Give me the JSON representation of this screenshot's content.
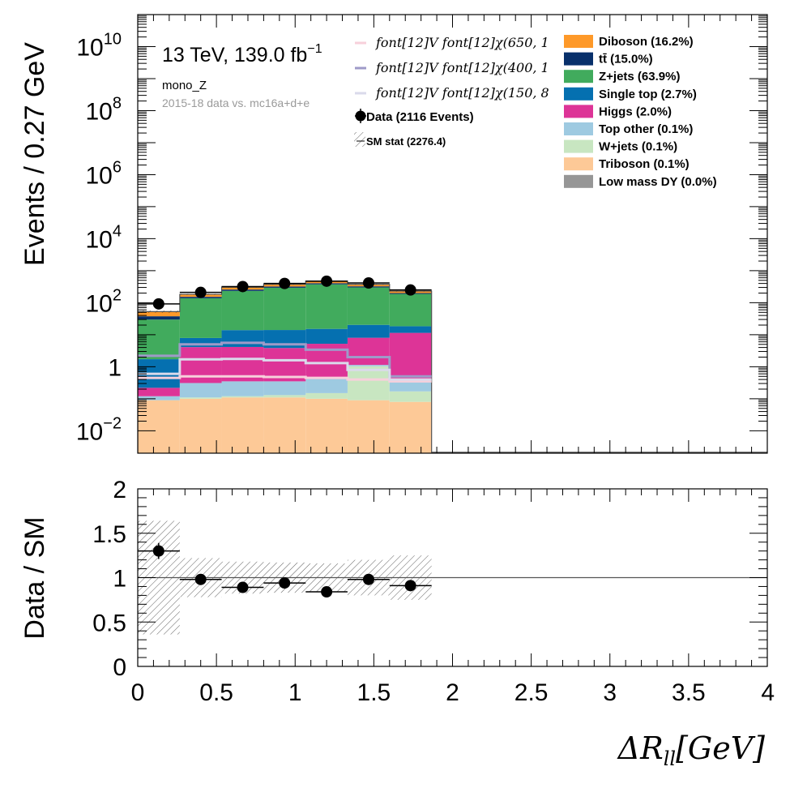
{
  "chart_data": [
    {
      "type": "stacked-histogram",
      "y_scale": "log",
      "ylabel": "Events / 0.27 GeV",
      "xlim": [
        0,
        4
      ],
      "ylim_exp": [
        -2.7,
        11
      ],
      "bin_edges": [
        0,
        0.267,
        0.533,
        0.8,
        1.067,
        1.333,
        1.6,
        1.867
      ],
      "y_ticks": [
        {
          "v": 0.01,
          "base": "10",
          "exp": "−2"
        },
        {
          "v": 1,
          "base": "1",
          "exp": ""
        },
        {
          "v": 100.0,
          "base": "10",
          "exp": "2"
        },
        {
          "v": 10000.0,
          "base": "10",
          "exp": "4"
        },
        {
          "v": 1000000.0,
          "base": "10",
          "exp": "6"
        },
        {
          "v": 100000000.0,
          "base": "10",
          "exp": "8"
        },
        {
          "v": 10000000000.0,
          "base": "10",
          "exp": "10"
        }
      ],
      "annotations": {
        "energy": "13 TeV, 139.0 fb",
        "lumi_exp": "−1",
        "region": "mono_Z",
        "dataset": "2015-18 data vs. mc16a+d+e"
      },
      "series": [
        {
          "name": "Triboson (0.1%)",
          "color": "#fdc997",
          "values": [
            0.09,
            0.1,
            0.11,
            0.11,
            0.1,
            0.09,
            0.08
          ]
        },
        {
          "name": "W+jets (0.1%)",
          "color": "#c8e6c1",
          "values": [
            0.0,
            0.01,
            0.01,
            0.02,
            0.05,
            0.95,
            0.09
          ]
        },
        {
          "name": "Top other (0.1%)",
          "color": "#9ecae1",
          "values": [
            0.03,
            0.2,
            0.23,
            0.22,
            0.27,
            0.1,
            0.25
          ]
        },
        {
          "name": "Higgs (2.0%)",
          "color": "#dd3497",
          "values": [
            0.1,
            3.8,
            3.8,
            3.5,
            4.8,
            6.9,
            11.0
          ]
        },
        {
          "name": "Single top (2.7%)",
          "color": "#0570b0",
          "values": [
            1.5,
            3.8,
            9.8,
            10.2,
            10.0,
            12.3,
            7.0
          ]
        },
        {
          "name": "Z+jets (63.9%)",
          "color": "#41ab5d",
          "values": [
            28,
            130,
            220,
            280,
            360,
            280,
            170
          ]
        },
        {
          "name": "tt̄ (15.0%)",
          "color": "#08306b",
          "values": [
            8,
            15,
            24,
            27,
            32,
            25,
            12
          ]
        },
        {
          "name": "Diboson (16.2%)",
          "color": "#fe9929",
          "values": [
            15,
            30,
            48,
            55,
            70,
            50,
            30
          ]
        },
        {
          "name": "Low mass DY (0.0%)",
          "color": "#969696",
          "values": [
            0,
            0,
            0,
            0,
            0,
            0,
            0
          ]
        }
      ],
      "signals": [
        {
          "name": "font[12]V   font[12]χ(650, 1",
          "color": "#f7d0db",
          "values": [
            0.45,
            0.5,
            0.5,
            0.48,
            0.45,
            0.4,
            0.35
          ]
        },
        {
          "name": "font[12]V   font[12]χ(400, 1",
          "color": "#9e9ac8",
          "values": [
            2.2,
            5.0,
            5.6,
            5.0,
            3.4,
            2.0,
            0.5
          ]
        },
        {
          "name": "font[12]V   font[12]χ(150, 8",
          "color": "#dadaeb",
          "values": [
            0.6,
            1.7,
            1.75,
            1.6,
            1.3,
            0.8,
            0.4
          ]
        }
      ],
      "data": {
        "name": "Data (2116 Events)",
        "x": [
          0.133,
          0.4,
          0.667,
          0.933,
          1.2,
          1.467,
          1.733
        ],
        "y": [
          92,
          210,
          320,
          400,
          470,
          415,
          250
        ]
      },
      "uncertainty": {
        "name": "SM stat (2276.4)"
      }
    },
    {
      "type": "ratio",
      "ylabel": "Data / SM",
      "xlabel": "ΔR",
      "xlabel_sub": "ll",
      "xlabel_unit": "[GeV]",
      "xlim": [
        0,
        4
      ],
      "ylim": [
        0,
        2
      ],
      "x_ticks": [
        "0",
        "0.5",
        "1",
        "1.5",
        "2",
        "2.5",
        "3",
        "3.5",
        "4"
      ],
      "y_ticks": [
        "0",
        "0.5",
        "1",
        "1.5",
        "2"
      ],
      "reference": 1,
      "points": {
        "x": [
          0.133,
          0.4,
          0.667,
          0.933,
          1.2,
          1.467,
          1.733
        ],
        "y": [
          1.3,
          0.98,
          0.89,
          0.94,
          0.84,
          0.98,
          0.91
        ],
        "err": [
          0.09,
          0.04,
          0.03,
          0.03,
          0.03,
          0.03,
          0.04
        ]
      },
      "band": [
        0.64,
        0.22,
        0.18,
        0.17,
        0.16,
        0.2,
        0.25
      ]
    }
  ]
}
